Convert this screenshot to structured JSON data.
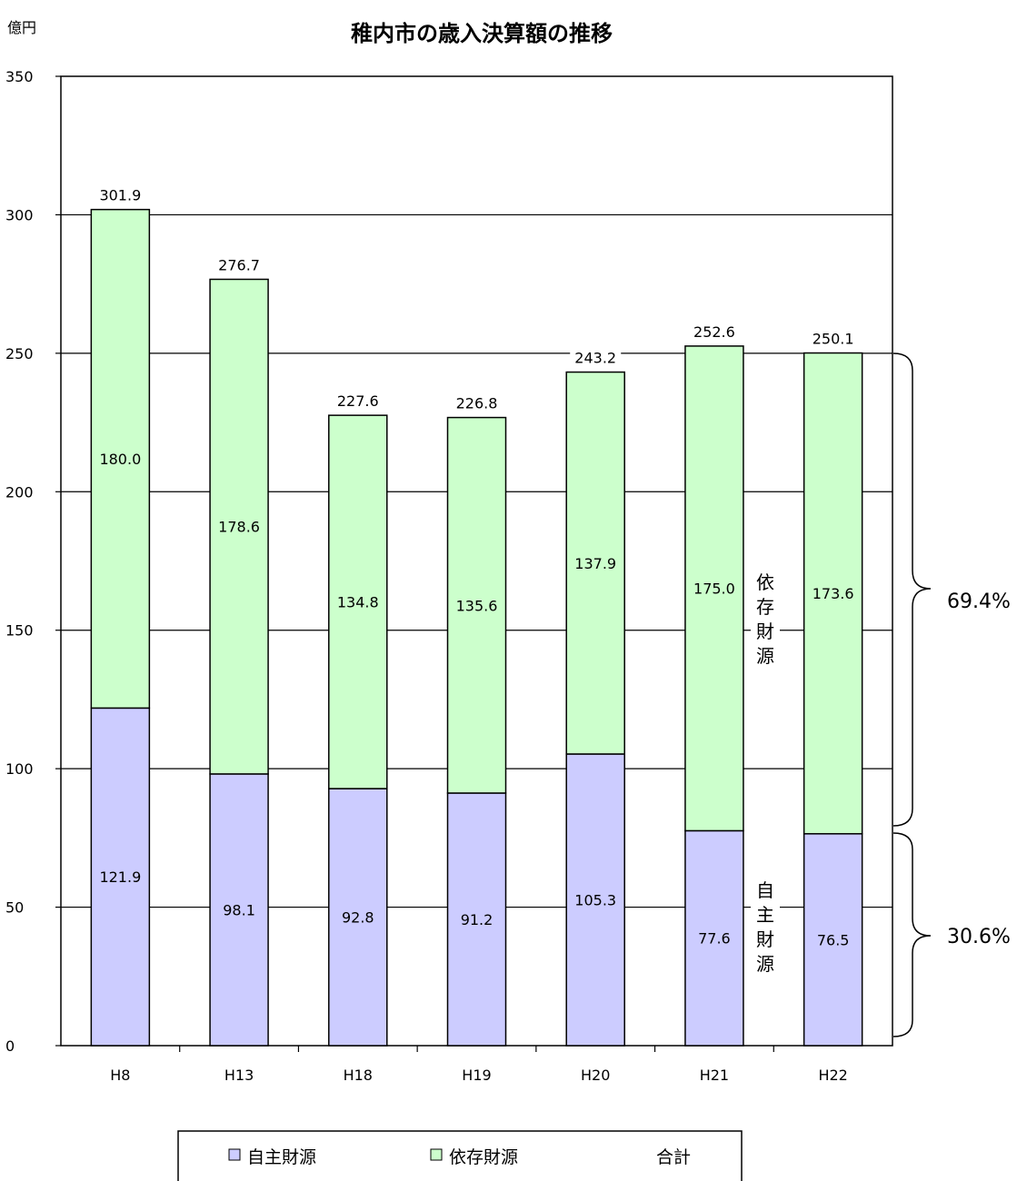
{
  "chart_data": {
    "type": "bar",
    "stacked": true,
    "title": "稚内市の歳入決算額の推移",
    "unit_label": "億円",
    "categories": [
      "H8",
      "H13",
      "H18",
      "H19",
      "H20",
      "H21",
      "H22"
    ],
    "series": [
      {
        "name": "自主財源",
        "color": "#ccccff",
        "values": [
          121.9,
          98.1,
          92.8,
          91.2,
          105.3,
          77.6,
          76.5
        ]
      },
      {
        "name": "依存財源",
        "color": "#ccffcc",
        "values": [
          180.0,
          178.6,
          134.8,
          135.6,
          137.9,
          175.0,
          173.6
        ]
      }
    ],
    "totals": {
      "name": "合計",
      "values": [
        301.9,
        276.7,
        227.6,
        226.8,
        243.2,
        252.6,
        250.1
      ]
    },
    "ylim": [
      0,
      350
    ],
    "yticks": [
      0,
      50,
      100,
      150,
      200,
      250,
      300,
      350
    ],
    "grid": true,
    "legend_position": "bottom",
    "annotations": {
      "dependent_label": "依存財源",
      "independent_label": "自主財源",
      "dependent_pct": "69.4%",
      "independent_pct": "30.6%"
    }
  }
}
